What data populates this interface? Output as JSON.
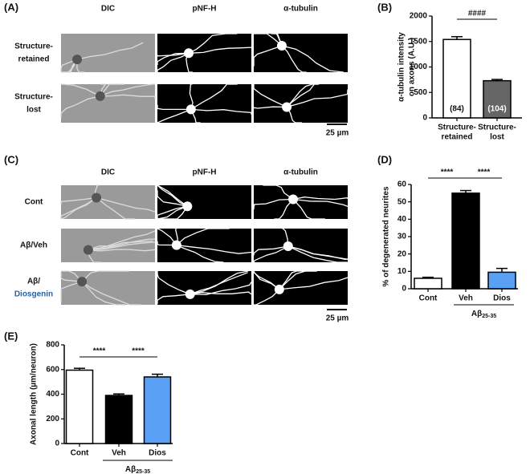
{
  "panel_a": {
    "label": "(A)",
    "columns": [
      "DIC",
      "pNF-H",
      "α-tubulin"
    ],
    "rows": [
      [
        "Structure-",
        "retained"
      ],
      [
        "Structure-",
        "lost"
      ]
    ],
    "scale_bar": "25 µm"
  },
  "panel_c": {
    "label": "(C)",
    "columns": [
      "DIC",
      "pNF-H",
      "α-tubulin"
    ],
    "rows": [
      [
        "Cont"
      ],
      [
        "Aβ/Veh"
      ],
      [
        "Aβ/",
        "Diosgenin"
      ]
    ],
    "scale_bar": "25 µm"
  },
  "chart_data": [
    {
      "type": "bar",
      "label": "(B)",
      "ylabel": [
        "α-tubulin intensity",
        "on axons (A.U.)"
      ],
      "categories": [
        [
          "Structure-",
          "retained"
        ],
        [
          "Structure-",
          "lost"
        ]
      ],
      "values": [
        1540,
        730
      ],
      "errors": [
        55,
        25
      ],
      "colors": [
        "#ffffff",
        "#666666"
      ],
      "n_labels": [
        "(84)",
        "(104)"
      ],
      "annotations": [
        "####"
      ],
      "ylim": [
        0,
        2000
      ],
      "yticks": [
        0,
        500,
        1000,
        1500,
        2000
      ]
    },
    {
      "type": "bar",
      "label": "(D)",
      "ylabel": [
        "% of degenerated neurites"
      ],
      "categories": [
        [
          "Cont"
        ],
        [
          "Veh"
        ],
        [
          "Dios"
        ]
      ],
      "values": [
        6,
        55,
        9.5
      ],
      "errors": [
        0.6,
        1.5,
        2.2
      ],
      "colors": [
        "#ffffff",
        "#000000",
        "#5aa0f5"
      ],
      "annotations": [
        "****",
        "****"
      ],
      "group": {
        "text": "Aβ",
        "subscript": "25-35"
      },
      "ylim": [
        0,
        60
      ],
      "yticks": [
        0,
        10,
        20,
        30,
        40,
        50,
        60
      ]
    },
    {
      "type": "bar",
      "label": "(E)",
      "ylabel": [
        "Axonal length (µm/neuron)"
      ],
      "categories": [
        [
          "Cont"
        ],
        [
          "Veh"
        ],
        [
          "Dios"
        ]
      ],
      "values": [
        595,
        390,
        540
      ],
      "errors": [
        15,
        12,
        22
      ],
      "colors": [
        "#ffffff",
        "#000000",
        "#5aa0f5"
      ],
      "annotations": [
        "****",
        "****"
      ],
      "group": {
        "text": "Aβ",
        "subscript": "25-35"
      },
      "ylim": [
        0,
        800
      ],
      "yticks": [
        0,
        200,
        400,
        600,
        800
      ]
    }
  ]
}
